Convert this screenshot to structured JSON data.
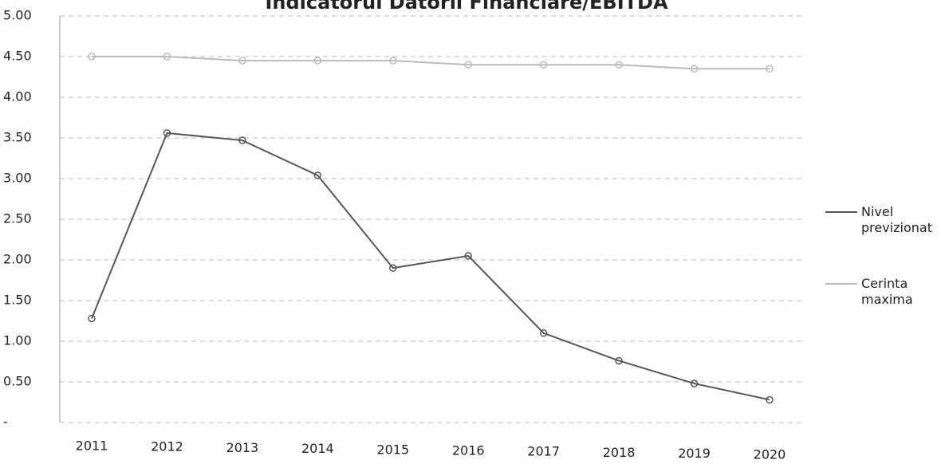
{
  "chart_data": {
    "type": "line",
    "title": "Indicatorul Datorii Financiare/EBITDA",
    "categories": [
      "2011",
      "2012",
      "2013",
      "2014",
      "2015",
      "2016",
      "2017",
      "2018",
      "2019",
      "2020"
    ],
    "series": [
      {
        "name": "Nivel previzionat",
        "color": "#555555",
        "values": [
          1.28,
          3.56,
          3.47,
          3.04,
          1.9,
          2.05,
          1.1,
          0.76,
          0.48,
          0.28
        ]
      },
      {
        "name": "Cerinta maxima",
        "color": "#bbbbbb",
        "values": [
          4.5,
          4.5,
          4.45,
          4.45,
          4.45,
          4.4,
          4.4,
          4.4,
          4.35,
          4.35
        ]
      }
    ],
    "ylim": [
      0,
      5
    ],
    "yticks": [
      {
        "value": 0,
        "label": "-"
      },
      {
        "value": 0.5,
        "label": "0.50"
      },
      {
        "value": 1,
        "label": "1.00"
      },
      {
        "value": 1.5,
        "label": "1.50"
      },
      {
        "value": 2,
        "label": "2.00"
      },
      {
        "value": 2.5,
        "label": "2.50"
      },
      {
        "value": 3,
        "label": "3.00"
      },
      {
        "value": 3.5,
        "label": "3.50"
      },
      {
        "value": 4,
        "label": "4.00"
      },
      {
        "value": 4.5,
        "label": "4.50"
      },
      {
        "value": 5,
        "label": "5.00"
      }
    ],
    "grid": true,
    "legend": "right"
  }
}
